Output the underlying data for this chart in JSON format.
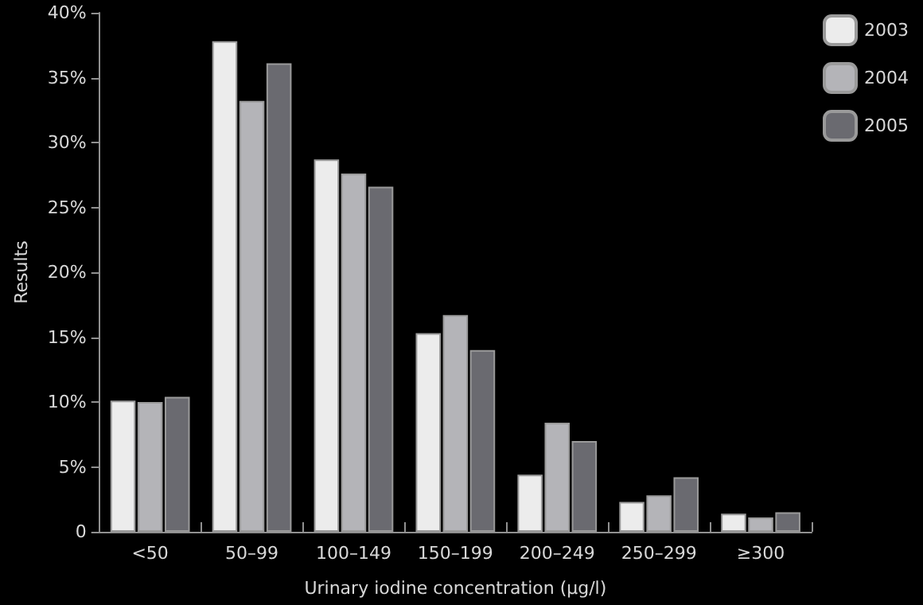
{
  "chart_data": {
    "type": "bar",
    "xlabel": "Urinary iodine concentration (μg/l)",
    "ylabel": "Results",
    "categories": [
      "<50",
      "50–99",
      "100–149",
      "150–199",
      "200–249",
      "250–299",
      "≥300"
    ],
    "series": [
      {
        "name": "2003",
        "color": "#ececec",
        "values": [
          10.1,
          37.8,
          28.7,
          15.3,
          4.4,
          2.3,
          1.4
        ]
      },
      {
        "name": "2004",
        "color": "#b4b4b8",
        "values": [
          10.0,
          33.2,
          27.6,
          16.7,
          8.4,
          2.8,
          1.1
        ]
      },
      {
        "name": "2005",
        "color": "#6a6a70",
        "values": [
          10.4,
          36.1,
          26.6,
          14.0,
          7.0,
          4.2,
          1.5
        ]
      }
    ],
    "ylim": [
      0,
      40
    ],
    "yticks": [
      {
        "value": 0,
        "label": "0"
      },
      {
        "value": 5,
        "label": "5%"
      },
      {
        "value": 10,
        "label": "10%"
      },
      {
        "value": 15,
        "label": "15%"
      },
      {
        "value": 20,
        "label": "20%"
      },
      {
        "value": 25,
        "label": "25%"
      },
      {
        "value": 30,
        "label": "30%"
      },
      {
        "value": 35,
        "label": "35%"
      },
      {
        "value": 40,
        "label": "40%"
      }
    ],
    "grid": false,
    "legend": "top right"
  }
}
